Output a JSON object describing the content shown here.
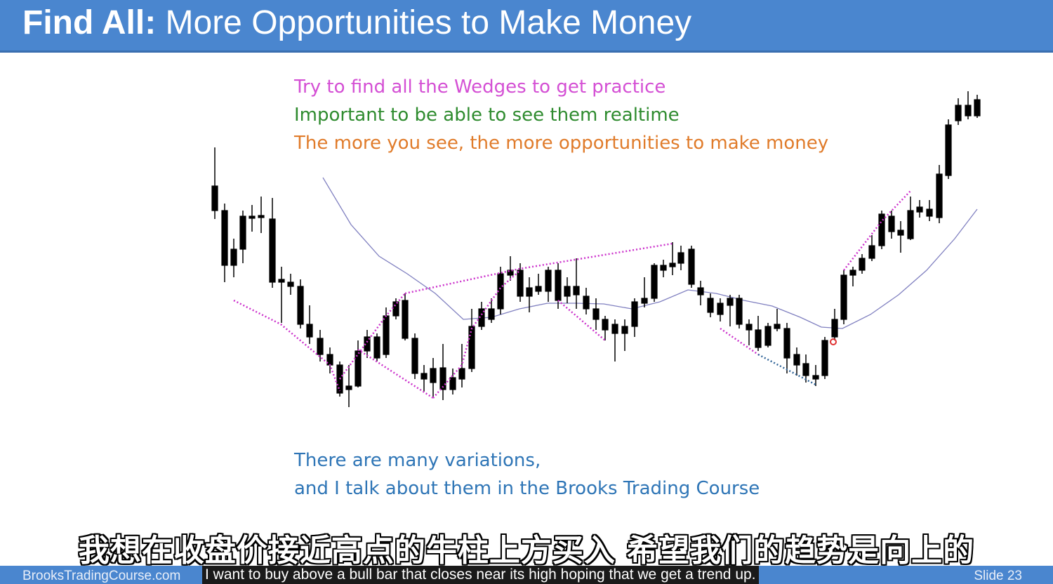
{
  "slide": {
    "title_bold": "Find All:",
    "title_rest": " More Opportunities to Make Money",
    "notes": [
      {
        "text": "Try to find all the Wedges to get practice",
        "color": "#d44fd4"
      },
      {
        "text": "Important to be able to see them realtime",
        "color": "#2e8b2e"
      },
      {
        "text": "The more you see, the more opportunities to make money",
        "color": "#e07b2a"
      }
    ],
    "bottom_notes": [
      {
        "text": "There are many variations,",
        "color": "#2e75b6"
      },
      {
        "text": "and I talk about them in the Brooks Trading Course",
        "color": "#2e75b6"
      }
    ],
    "footer_site": "BrooksTradingCourse.com",
    "slide_number": "Slide  23"
  },
  "subtitles": {
    "chinese": "我想在收盘价接近高点的牛柱上方买入 希望我们的趋势是向上的",
    "english": "I want to buy above a bull bar that closes near its high  hoping that we get a trend up."
  },
  "colors": {
    "header": "#4a86cf",
    "bull_body": "#ffffff",
    "bear_body": "#000000",
    "moving_average": "#8080c0",
    "wedge_line": "#cc33cc",
    "wedge_line_alt": "#336699"
  }
}
